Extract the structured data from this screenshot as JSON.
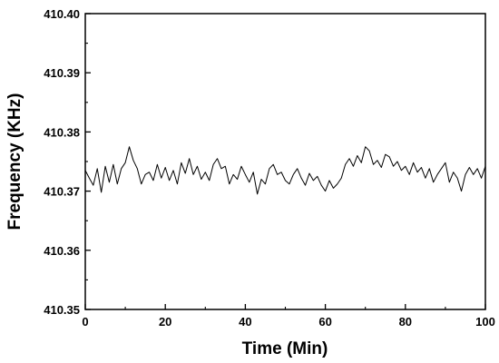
{
  "chart_data": {
    "type": "line",
    "title": "",
    "xlabel": "Time (Min)",
    "ylabel": "Frequency (KHz)",
    "xlim": [
      0,
      100
    ],
    "ylim": [
      410.35,
      410.4
    ],
    "x_ticks": [
      0,
      20,
      40,
      60,
      80,
      100
    ],
    "x_tick_labels": [
      "0",
      "20",
      "40",
      "60",
      "80",
      "100"
    ],
    "y_ticks": [
      410.35,
      410.36,
      410.37,
      410.38,
      410.39,
      410.4
    ],
    "y_tick_labels": [
      "410.35",
      "410.36",
      "410.37",
      "410.38",
      "410.39",
      "410.40"
    ],
    "grid": false,
    "legend": "none",
    "line_color": "#000000",
    "series": [
      {
        "x": [
          0,
          1,
          2,
          3,
          4,
          5,
          6,
          7,
          8,
          9,
          10,
          11,
          12,
          13,
          14,
          15,
          16,
          17,
          18,
          19,
          20,
          21,
          22,
          23,
          24,
          25,
          26,
          27,
          28,
          29,
          30,
          31,
          32,
          33,
          34,
          35,
          36,
          37,
          38,
          39,
          40,
          41,
          42,
          43,
          44,
          45,
          46,
          47,
          48,
          49,
          50,
          51,
          52,
          53,
          54,
          55,
          56,
          57,
          58,
          59,
          60,
          61,
          62,
          63,
          64,
          65,
          66,
          67,
          68,
          69,
          70,
          71,
          72,
          73,
          74,
          75,
          76,
          77,
          78,
          79,
          80,
          81,
          82,
          83,
          84,
          85,
          86,
          87,
          88,
          89,
          90,
          91,
          92,
          93,
          94,
          95,
          96,
          97,
          98,
          99,
          100
        ],
        "y": [
          410.3735,
          410.3722,
          410.371,
          410.3738,
          410.3698,
          410.3742,
          410.3715,
          410.3745,
          410.3712,
          410.3738,
          410.3748,
          410.3775,
          410.3752,
          410.3738,
          410.3712,
          410.3728,
          410.3732,
          410.3718,
          410.3745,
          410.3722,
          410.374,
          410.3718,
          410.3735,
          410.3712,
          410.3748,
          410.373,
          410.3755,
          410.3728,
          410.3742,
          410.372,
          410.3732,
          410.3718,
          410.3745,
          410.3755,
          410.3738,
          410.3742,
          410.3712,
          410.3728,
          410.372,
          410.3742,
          410.3728,
          410.3715,
          410.3732,
          410.3695,
          410.372,
          410.3712,
          410.3738,
          410.3745,
          410.3728,
          410.3732,
          410.3718,
          410.3712,
          410.3728,
          410.3738,
          410.3722,
          410.371,
          410.373,
          410.3718,
          410.3725,
          410.371,
          410.37,
          410.3718,
          410.3705,
          410.3712,
          410.3722,
          410.3745,
          410.3755,
          410.3742,
          410.376,
          410.3748,
          410.3775,
          410.3768,
          410.3745,
          410.3752,
          410.374,
          410.3762,
          410.3758,
          410.3742,
          410.375,
          410.3735,
          410.3742,
          410.3728,
          410.3748,
          410.3732,
          410.374,
          410.3722,
          410.3738,
          410.3715,
          410.3728,
          410.3738,
          410.3748,
          410.3715,
          410.3732,
          410.3722,
          410.37,
          410.3728,
          410.374,
          410.3728,
          410.3738,
          410.3722,
          410.3742
        ]
      }
    ]
  }
}
